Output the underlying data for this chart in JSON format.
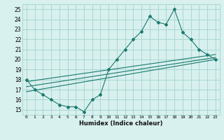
{
  "line1_x": [
    0,
    1,
    2,
    3,
    4,
    5,
    6,
    7,
    8,
    9,
    10,
    11,
    12,
    13,
    14,
    15,
    16,
    17,
    18,
    19,
    20,
    21,
    22,
    23
  ],
  "line1_y": [
    18,
    17,
    16.5,
    16,
    15.5,
    15.3,
    15.3,
    14.8,
    16.0,
    16.5,
    19.0,
    20.0,
    21.0,
    22.0,
    22.8,
    24.3,
    23.7,
    23.5,
    25.0,
    22.7,
    22.0,
    21.0,
    20.5,
    20.0
  ],
  "line2_x": [
    0,
    23
  ],
  "line2_y": [
    16.8,
    20.0
  ],
  "line3_x": [
    0,
    23
  ],
  "line3_y": [
    17.3,
    20.2
  ],
  "line4_x": [
    0,
    23
  ],
  "line4_y": [
    17.8,
    20.5
  ],
  "color": "#1a7a6e",
  "bg_color": "#d8f0ee",
  "grid_color": "#a8d8d4",
  "xlabel": "Humidex (Indice chaleur)",
  "ylabel": "",
  "xlim": [
    -0.5,
    23.5
  ],
  "ylim": [
    14.5,
    25.5
  ],
  "xticks": [
    0,
    1,
    2,
    3,
    4,
    5,
    6,
    7,
    8,
    9,
    10,
    11,
    12,
    13,
    14,
    15,
    16,
    17,
    18,
    19,
    20,
    21,
    22,
    23
  ],
  "yticks": [
    15,
    16,
    17,
    18,
    19,
    20,
    21,
    22,
    23,
    24,
    25
  ],
  "xtick_labels": [
    "0",
    "1",
    "2",
    "3",
    "4",
    "5",
    "6",
    "7",
    "8",
    "9",
    "10",
    "11",
    "12",
    "13",
    "14",
    "15",
    "16",
    "17",
    "18",
    "19",
    "20",
    "21",
    "22",
    "23"
  ],
  "ytick_labels": [
    "15",
    "16",
    "17",
    "18",
    "19",
    "20",
    "21",
    "22",
    "23",
    "24",
    "25"
  ]
}
